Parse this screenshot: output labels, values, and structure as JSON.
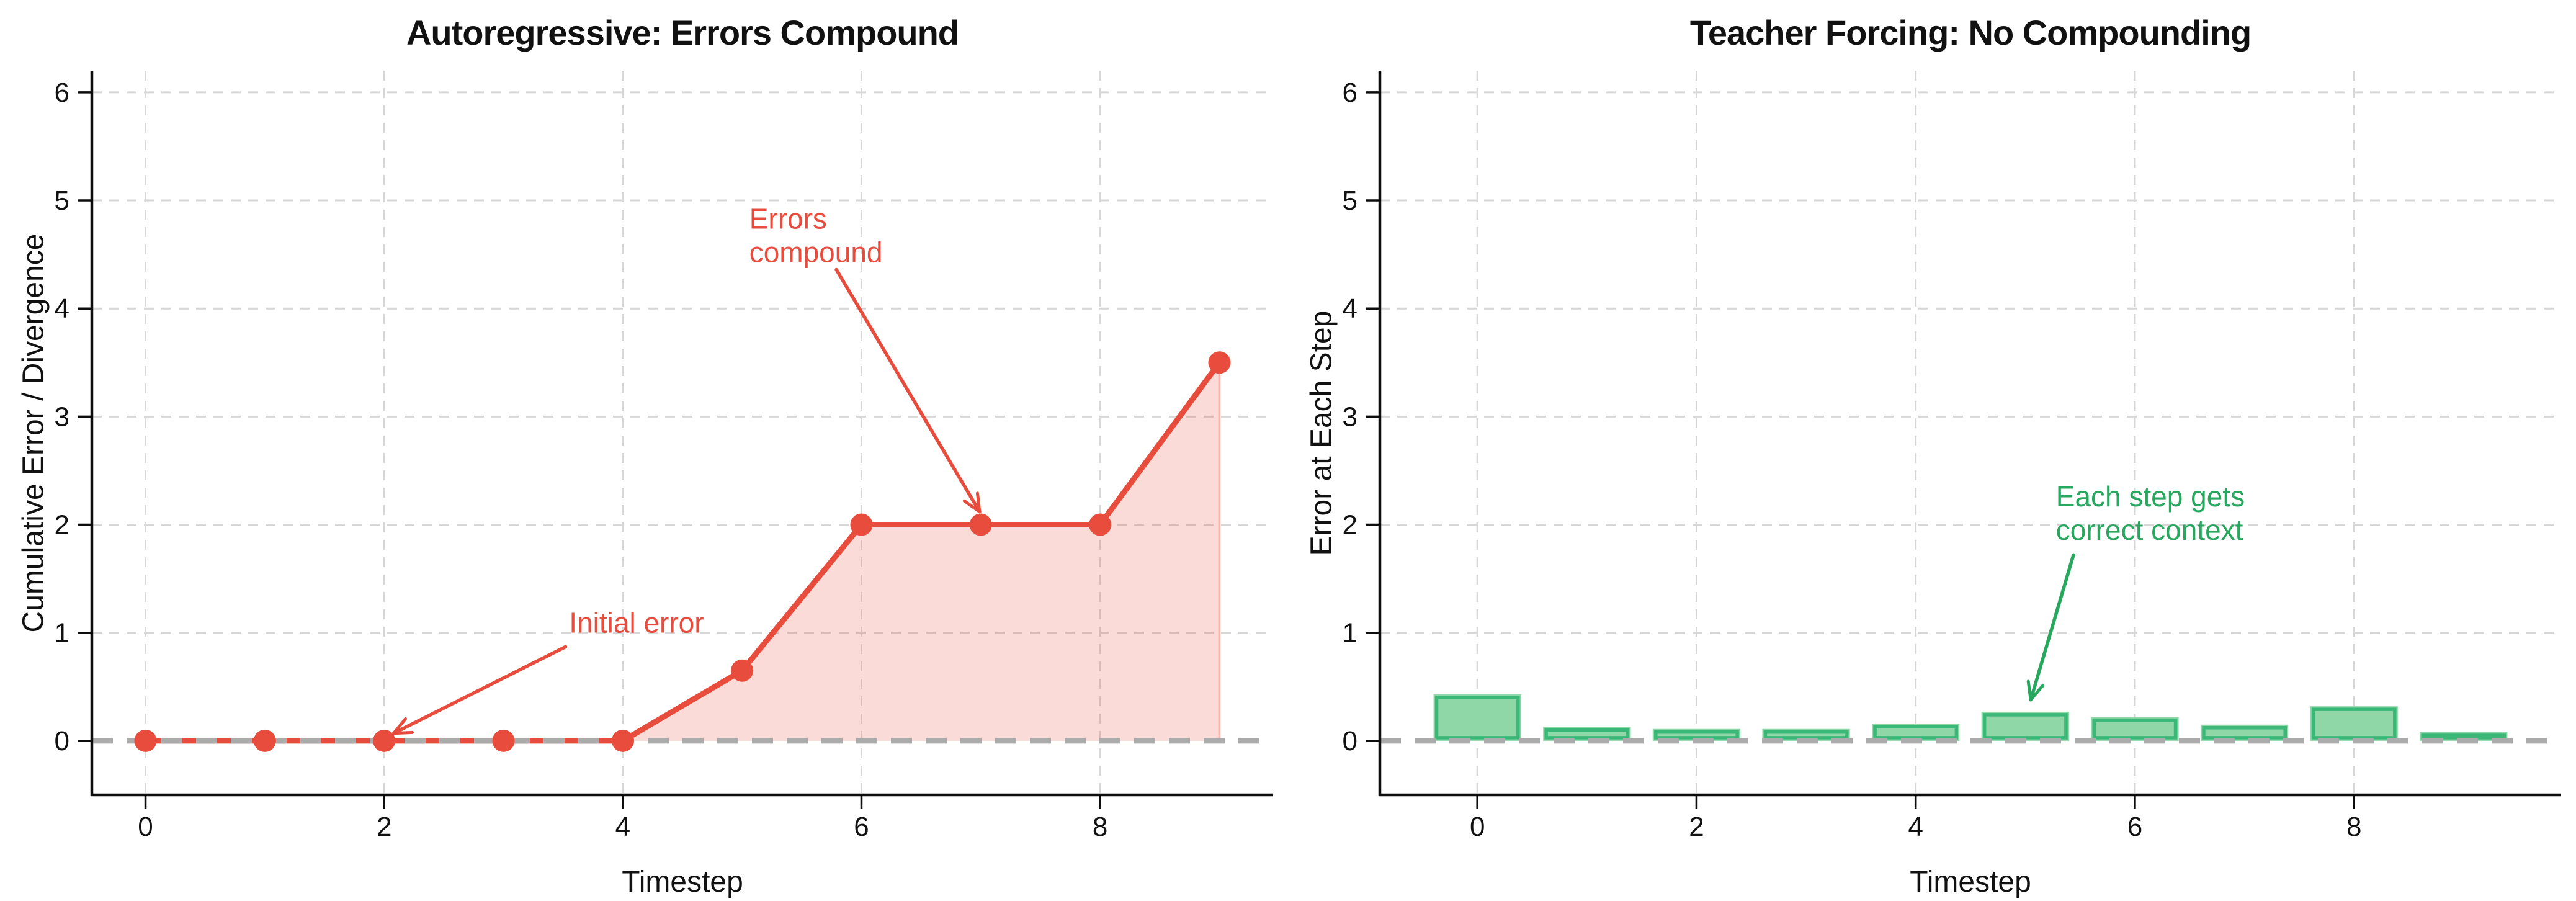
{
  "figure": {
    "background": "#ffffff"
  },
  "chart_data": [
    {
      "type": "line",
      "title": "Autoregressive: Errors Compound",
      "xlabel": "Timestep",
      "ylabel": "Cumulative Error / Divergence",
      "x": [
        0,
        1,
        2,
        3,
        4,
        5,
        6,
        7,
        8,
        9
      ],
      "y": [
        0,
        0,
        0,
        0,
        0,
        0.65,
        2.0,
        2.0,
        2.0,
        3.5
      ],
      "xlim": [
        -0.45,
        9.45
      ],
      "ylim": [
        -0.5,
        6.2
      ],
      "xticks": [
        0,
        2,
        4,
        6,
        8
      ],
      "yticks": [
        0,
        1,
        2,
        3,
        4,
        5,
        6
      ],
      "grid": true,
      "legend": "none",
      "line_color": "#e74c3c",
      "marker_color": "#e74c3c",
      "fill_color": "rgba(231,76,60,0.2)",
      "fill_edge_color": "rgba(231,76,60,0.35)",
      "zero_line_color": "#ababab",
      "grid_color": "#d6d6d6",
      "axis_color": "#0d0d0d",
      "annotations": [
        {
          "text": "Initial error",
          "color": "#e74c3c",
          "text_x": 3.55,
          "text_y": 1.0,
          "arrow_from": [
            3.52,
            0.87
          ],
          "arrow_to": [
            2.08,
            0.07
          ]
        },
        {
          "text": "Errors\ncompound",
          "color": "#e74c3c",
          "text_x": 5.06,
          "text_y": 4.74,
          "arrow_from": [
            5.79,
            4.36
          ],
          "arrow_to": [
            6.99,
            2.12
          ]
        }
      ]
    },
    {
      "type": "bar",
      "title": "Teacher Forcing: No Compounding",
      "xlabel": "Timestep",
      "ylabel": "Error at Each Step",
      "categories": [
        0,
        1,
        2,
        3,
        4,
        5,
        6,
        7,
        8,
        9
      ],
      "values": [
        0.43,
        0.13,
        0.11,
        0.11,
        0.16,
        0.27,
        0.22,
        0.15,
        0.32,
        0.08
      ],
      "bar_width": 0.8,
      "xlim": [
        -0.89,
        9.89
      ],
      "ylim": [
        -0.5,
        6.2
      ],
      "xticks": [
        0,
        2,
        4,
        6,
        8
      ],
      "yticks": [
        0,
        1,
        2,
        3,
        4,
        5,
        6
      ],
      "grid": true,
      "legend": "none",
      "bar_fill": "#90d7a8",
      "bar_edge": "#3bb878",
      "zero_line_color": "#ababab",
      "grid_color": "#d6d6d6",
      "axis_color": "#0d0d0d",
      "annotations": [
        {
          "text": "Each step gets\ncorrect context",
          "color": "#27a85e",
          "text_x": 5.28,
          "text_y": 2.17,
          "arrow_from": [
            5.44,
            1.72
          ],
          "arrow_to": [
            5.05,
            0.38
          ]
        }
      ]
    }
  ]
}
